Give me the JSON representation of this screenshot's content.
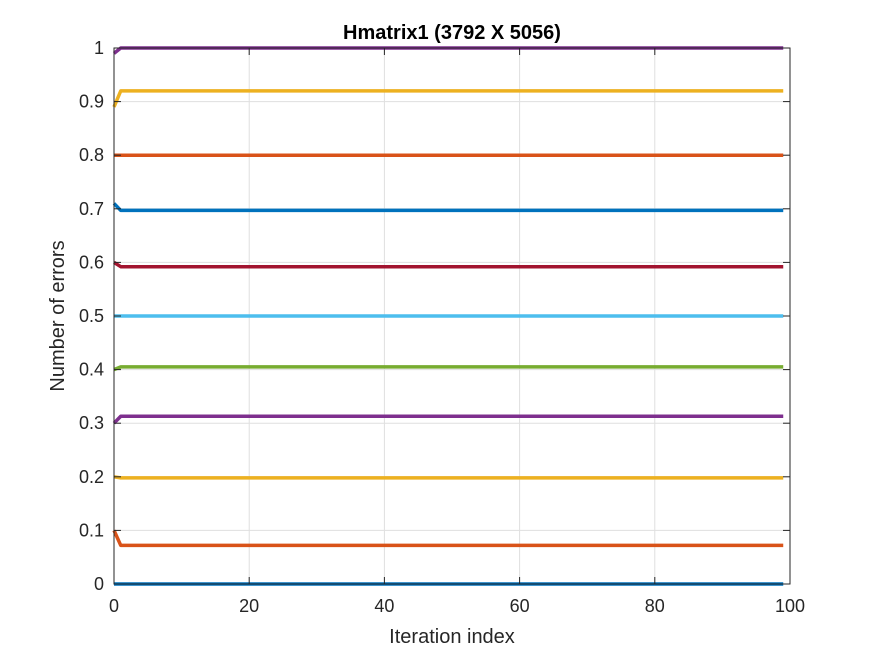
{
  "chart_data": {
    "type": "line",
    "title": "Hmatrix1 (3792 X 5056)",
    "xlabel": "Iteration index",
    "ylabel": "Number of errors",
    "xlim": [
      0,
      100
    ],
    "ylim": [
      0,
      1
    ],
    "xticks": [
      0,
      20,
      40,
      60,
      80,
      100
    ],
    "yticks": [
      0,
      0.1,
      0.2,
      0.3,
      0.4,
      0.5,
      0.6,
      0.7,
      0.8,
      0.9,
      1
    ],
    "xtick_labels": [
      "0",
      "20",
      "40",
      "60",
      "80",
      "100"
    ],
    "ytick_labels": [
      "0",
      "0.1",
      "0.2",
      "0.3",
      "0.4",
      "0.5",
      "0.6",
      "0.7",
      "0.8",
      "0.9",
      "1"
    ],
    "grid": true,
    "box": true,
    "series": [
      {
        "color": "#0072BD",
        "start": 0.0,
        "steady": 0.0,
        "x_end": 99
      },
      {
        "color": "#D95319",
        "start": 0.1,
        "steady": 0.072,
        "x_end": 99
      },
      {
        "color": "#EDB120",
        "start": 0.2,
        "steady": 0.198,
        "x_end": 99
      },
      {
        "color": "#7E2F8E",
        "start": 0.3,
        "steady": 0.313,
        "x_end": 99
      },
      {
        "color": "#77AC30",
        "start": 0.4,
        "steady": 0.405,
        "x_end": 99
      },
      {
        "color": "#4DBEEE",
        "start": 0.5,
        "steady": 0.5,
        "x_end": 99
      },
      {
        "color": "#A2142F",
        "start": 0.6,
        "steady": 0.592,
        "x_end": 99
      },
      {
        "color": "#0072BD",
        "start": 0.71,
        "steady": 0.697,
        "x_end": 99
      },
      {
        "color": "#D95319",
        "start": 0.8,
        "steady": 0.8,
        "x_end": 99
      },
      {
        "color": "#EDB120",
        "start": 0.89,
        "steady": 0.92,
        "x_end": 99
      },
      {
        "color": "#7E2F8E",
        "start": 0.99,
        "steady": 1.0,
        "x_end": 99
      }
    ]
  }
}
